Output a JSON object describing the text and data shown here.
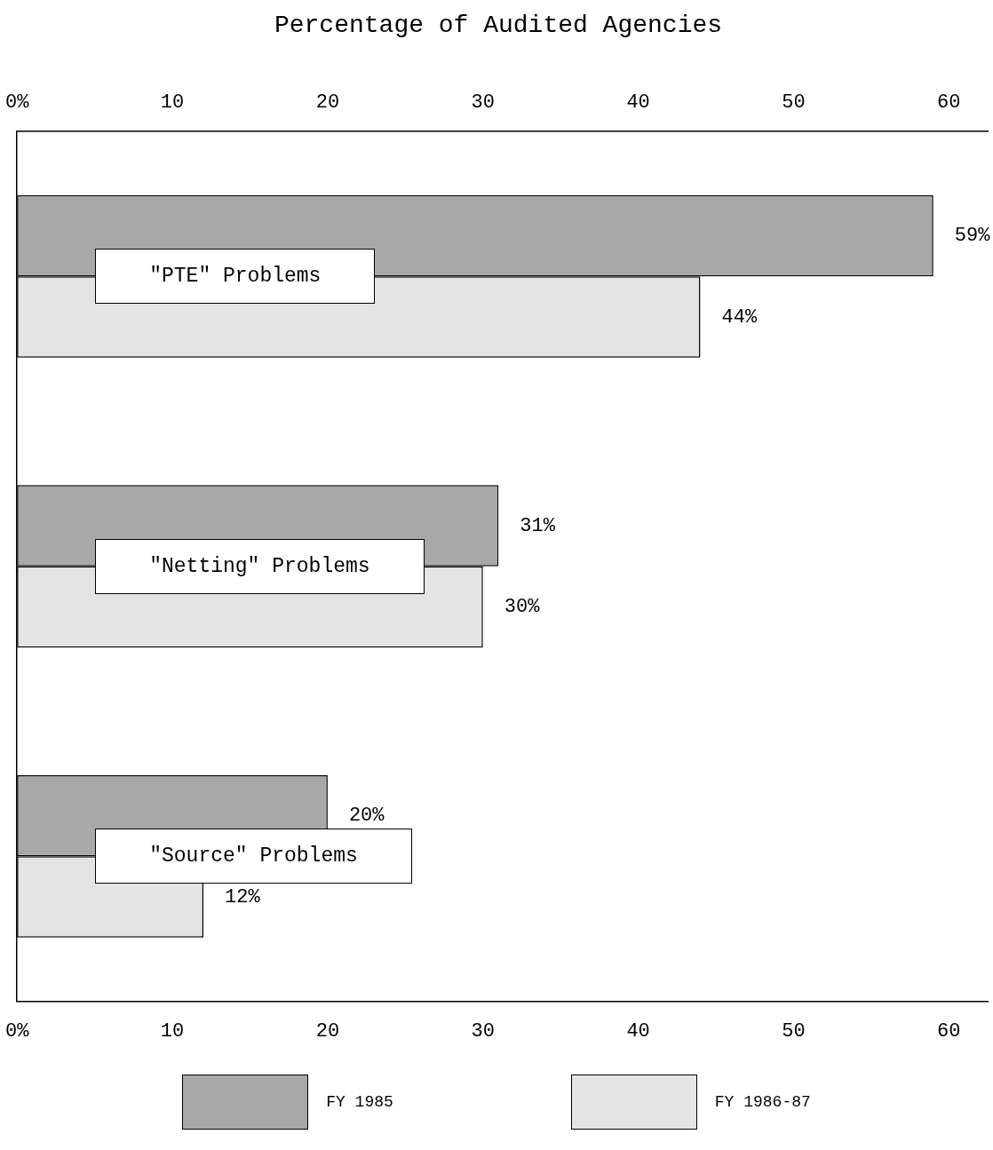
{
  "chart_data": {
    "type": "bar",
    "orientation": "horizontal",
    "title": "Percentage of Audited Agencies",
    "categories": [
      "\"PTE\" Problems",
      "\"Netting\" Problems",
      "\"Source\" Problems"
    ],
    "series": [
      {
        "name": "FY 1985",
        "color": "#a8a8a8",
        "values": [
          59,
          31,
          20
        ],
        "value_labels": [
          "59%",
          "31%",
          "20%"
        ]
      },
      {
        "name": "FY 1986-87",
        "color": "#e4e4e4",
        "values": [
          44,
          30,
          12
        ],
        "value_labels": [
          "44%",
          "30%",
          "12%"
        ]
      }
    ],
    "xlim": [
      0,
      62.5
    ],
    "xticks": [
      {
        "value": 0,
        "label": "0%"
      },
      10,
      20,
      30,
      40,
      50,
      60
    ],
    "x2lim": [
      0,
      62.5
    ],
    "x2ticks": [
      {
        "value": 0,
        "label": "0%"
      },
      10,
      20,
      30,
      40,
      50,
      60
    ],
    "grid": false,
    "legend": "bottom"
  }
}
